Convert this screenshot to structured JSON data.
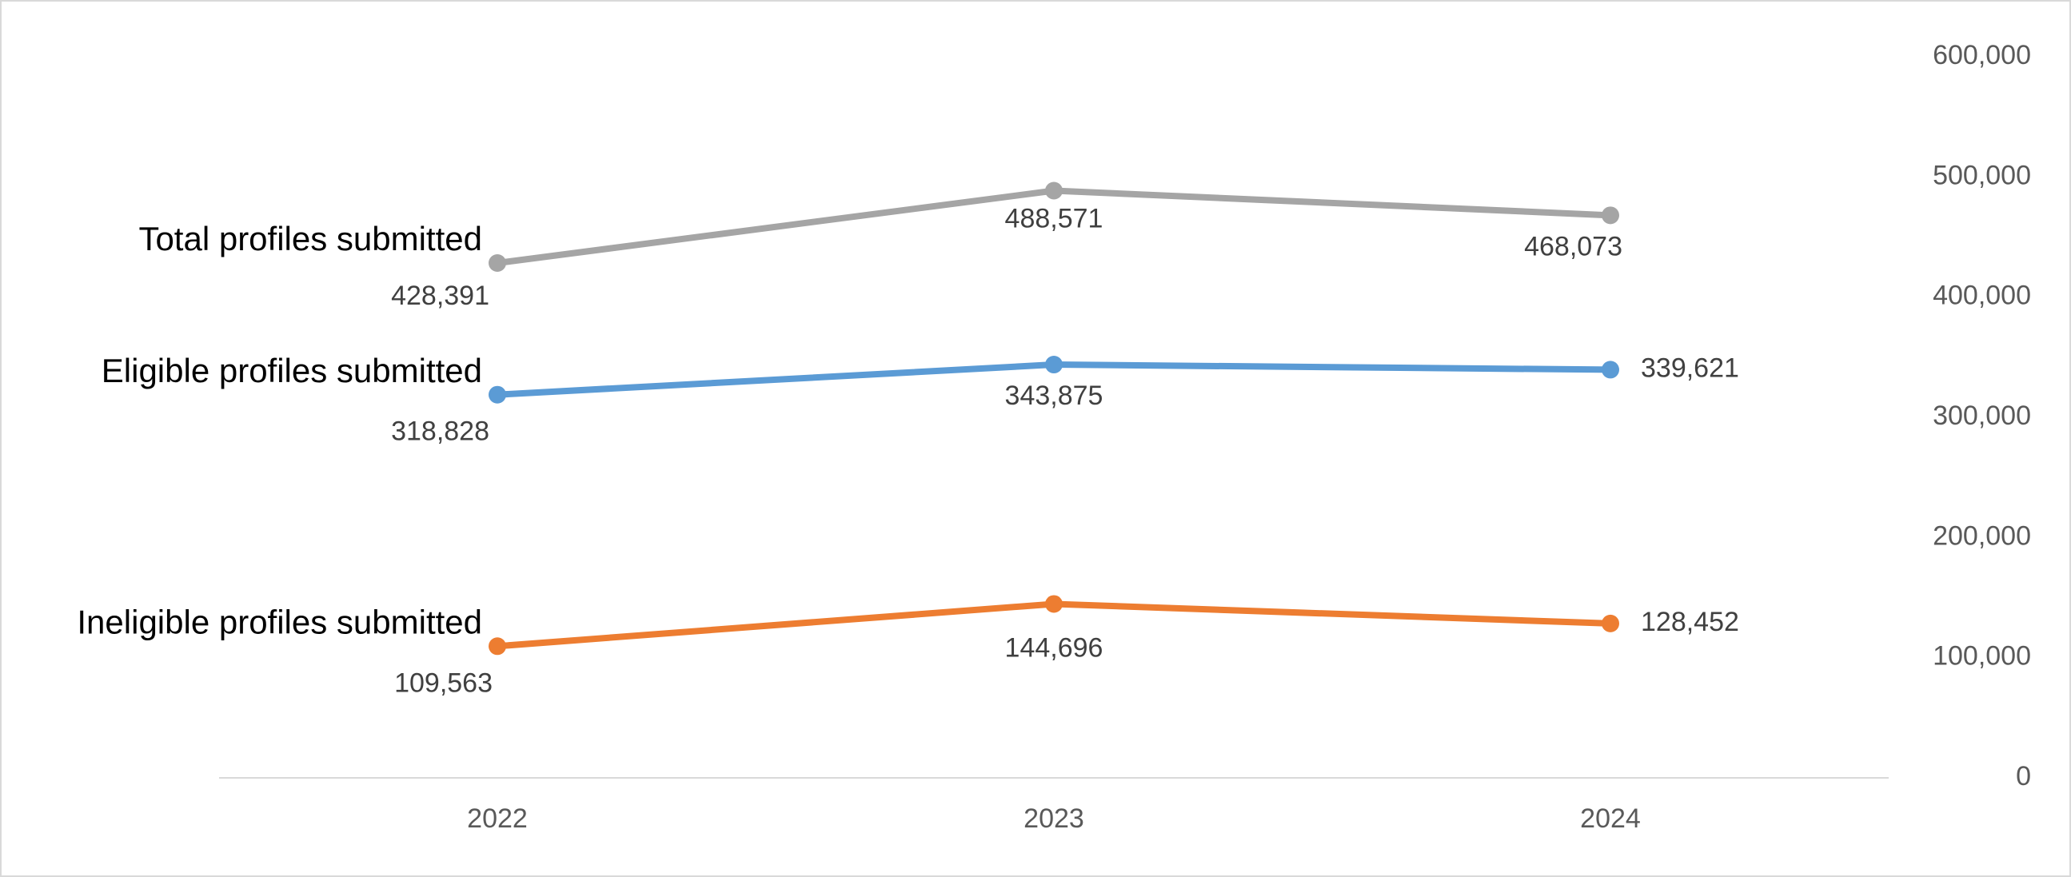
{
  "chart_data": {
    "type": "line",
    "categories": [
      "2022",
      "2023",
      "2024"
    ],
    "series": [
      {
        "name": "Total profiles submitted",
        "color": "#a5a5a5",
        "values": [
          428391,
          488571,
          468073
        ],
        "value_labels": [
          "428,391",
          "488,571",
          "468,073"
        ]
      },
      {
        "name": "Eligible profiles submitted",
        "color": "#5b9bd5",
        "values": [
          318828,
          343875,
          339621
        ],
        "value_labels": [
          "318,828",
          "343,875",
          "339,621"
        ]
      },
      {
        "name": "Ineligible profiles submitted",
        "color": "#ed7d31",
        "values": [
          109563,
          144696,
          128452
        ],
        "value_labels": [
          "109,563",
          "144,696",
          "128,452"
        ]
      }
    ],
    "ylim": [
      0,
      600000
    ],
    "yticks": [
      0,
      {
        "value": 100000,
        "label": "100,000"
      },
      {
        "value": 200000,
        "label": "200,000"
      },
      {
        "value": 300000,
        "label": "300,000"
      },
      {
        "value": 400000,
        "label": "400,000"
      },
      {
        "value": 500000,
        "label": "500,000"
      },
      {
        "value": 600000,
        "label": "600,000"
      }
    ],
    "y_axis_side": "right",
    "grid": false
  }
}
